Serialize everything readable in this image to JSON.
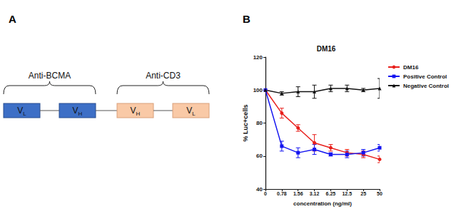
{
  "panel_labels": [
    "A",
    "B"
  ],
  "diagram": {
    "groups": [
      {
        "label": "Anti-BCMA",
        "color": "#3d6fc6",
        "domains": [
          {
            "main": "V",
            "sub": "L"
          },
          {
            "main": "V",
            "sub": "H"
          }
        ]
      },
      {
        "label": "Anti-CD3",
        "color": "#f9c9a6",
        "domains": [
          {
            "main": "V",
            "sub": "H"
          },
          {
            "main": "V",
            "sub": "L"
          }
        ]
      }
    ]
  },
  "chart_data": {
    "type": "line",
    "title": "DM16",
    "x_label": "concentration (ng/ml)",
    "y_label": "% Luc+cells",
    "categories": [
      "0",
      "0.78",
      "1.56",
      "3.12",
      "6.25",
      "12.5",
      "25",
      "50"
    ],
    "ylim": [
      40,
      120
    ],
    "yticks": [
      40,
      60,
      80,
      100,
      120
    ],
    "grid": false,
    "legend": "right",
    "series": [
      {
        "name": "DM16",
        "color": "#e8201c",
        "marker": "circle",
        "values": [
          100,
          86,
          77,
          68,
          65,
          62,
          61,
          58
        ],
        "errors": [
          0,
          3,
          2,
          5,
          2,
          2,
          2,
          2
        ]
      },
      {
        "name": "Positive Control",
        "color": "#1414f0",
        "marker": "square",
        "values": [
          100,
          66,
          62,
          64,
          61,
          61,
          62,
          65
        ],
        "errors": [
          0,
          3,
          3,
          3,
          1,
          2,
          2,
          2
        ]
      },
      {
        "name": "Negative Control",
        "color": "#111111",
        "marker": "triangle",
        "values": [
          100,
          98,
          99,
          99,
          101,
          101,
          100,
          101
        ],
        "errors": [
          0,
          1,
          3,
          4,
          2,
          2,
          1,
          6
        ]
      }
    ]
  }
}
